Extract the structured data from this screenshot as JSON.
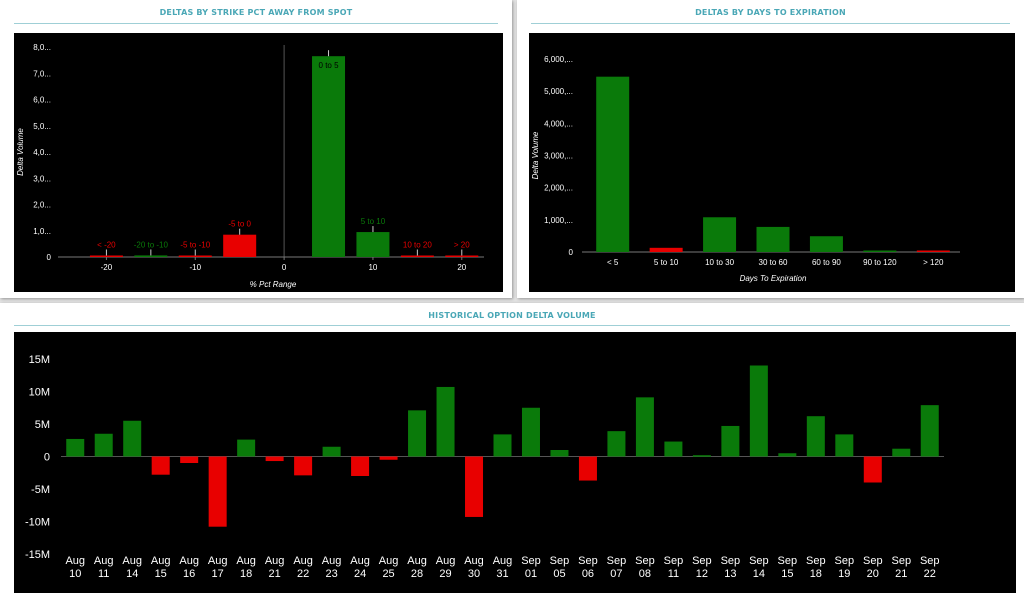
{
  "colors": {
    "positive": "#0a7a0a",
    "negative": "#e80000",
    "background": "#000000",
    "title": "#4aa7b6"
  },
  "charts": [
    {
      "title": "DELTAS BY STRIKE PCT AWAY FROM SPOT",
      "chart_data": {
        "type": "bar",
        "x_axis": "numeric",
        "xlabel": "% Pct Range",
        "ylabel": "Delta Volume",
        "xticks": [
          "-20",
          "-10",
          "0",
          "10",
          "20"
        ],
        "xlim": [
          -25,
          22.5
        ],
        "yticks": [
          "0",
          "1,0...",
          "2,0...",
          "3,0...",
          "4,0...",
          "5,0...",
          "6,0...",
          "7,0...",
          "8,0..."
        ],
        "ylim": [
          0,
          8000
        ],
        "bars": [
          {
            "label": "< -20",
            "x": -20,
            "value": 40,
            "sign": "negative"
          },
          {
            "label": "-20 to -10",
            "x": -15,
            "value": 60,
            "sign": "positive"
          },
          {
            "label": "-5 to -10",
            "x": -10,
            "value": 30,
            "sign": "negative"
          },
          {
            "label": "-5 to 0",
            "x": -5,
            "value": 850,
            "sign": "negative"
          },
          {
            "label": "0 to 5",
            "x": 5,
            "value": 7650,
            "sign": "positive"
          },
          {
            "label": "5 to 10",
            "x": 10,
            "value": 950,
            "sign": "positive"
          },
          {
            "label": "10 to 20",
            "x": 15,
            "value": 50,
            "sign": "negative"
          },
          {
            "label": "> 20",
            "x": 20,
            "value": 30,
            "sign": "negative"
          }
        ]
      }
    },
    {
      "title": "DELTAS BY DAYS TO EXPIRATION",
      "chart_data": {
        "type": "bar",
        "xlabel": "Days To Expiration",
        "ylabel": "Delta Volume",
        "categories": [
          "< 5",
          "5 to 10",
          "10 to 30",
          "30 to 60",
          "60 to 90",
          "90 to 120",
          "> 120"
        ],
        "values": [
          5450,
          130,
          1080,
          780,
          490,
          40,
          20
        ],
        "signs": [
          "positive",
          "negative",
          "positive",
          "positive",
          "positive",
          "positive",
          "negative"
        ],
        "yticks": [
          "0",
          "1,000,...",
          "2,000,...",
          "3,000,...",
          "4,000,...",
          "5,000,...",
          "6,000,..."
        ],
        "ylim": [
          0,
          6000
        ]
      }
    },
    {
      "title": "HISTORICAL OPTION DELTA VOLUME",
      "chart_data": {
        "type": "bar",
        "categories": [
          "Aug 10",
          "Aug 11",
          "Aug 14",
          "Aug 15",
          "Aug 16",
          "Aug 17",
          "Aug 18",
          "Aug 21",
          "Aug 22",
          "Aug 23",
          "Aug 24",
          "Aug 25",
          "Aug 28",
          "Aug 29",
          "Aug 30",
          "Aug 31",
          "Sep 01",
          "Sep 05",
          "Sep 06",
          "Sep 07",
          "Sep 08",
          "Sep 11",
          "Sep 12",
          "Sep 13",
          "Sep 14",
          "Sep 15",
          "Sep 18",
          "Sep 19",
          "Sep 20",
          "Sep 21",
          "Sep 22"
        ],
        "values": [
          2.7,
          3.5,
          5.5,
          -2.8,
          -1.0,
          -10.8,
          2.6,
          -0.7,
          -2.9,
          1.5,
          -3.0,
          -0.5,
          7.1,
          10.7,
          -9.3,
          3.4,
          7.5,
          1.0,
          -3.7,
          3.9,
          9.1,
          2.3,
          0.2,
          4.7,
          14.0,
          0.5,
          6.2,
          3.4,
          -4.0,
          1.2,
          7.9
        ],
        "yticks": [
          "-15M",
          "-10M",
          "-5M",
          "0",
          "5M",
          "10M",
          "15M"
        ],
        "ylim": [
          -15,
          15
        ]
      }
    }
  ]
}
